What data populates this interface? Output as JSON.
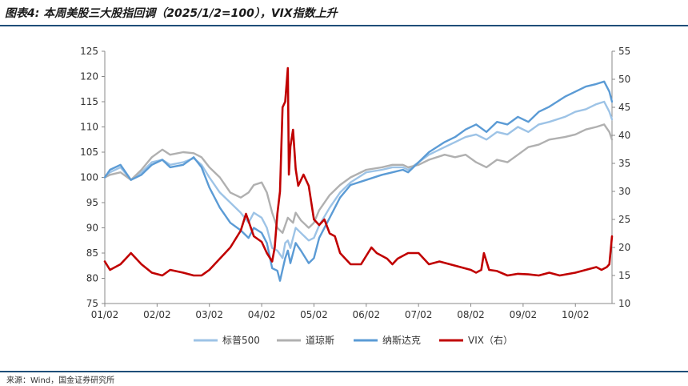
{
  "title": "图表4: 本周美股三大股指回调（2025/1/2=100），VIX指数上升",
  "source": "来源：Wind，国金证券研究所",
  "colors": {
    "spx": "#9dc3e6",
    "dji": "#b0b0b0",
    "ndx": "#5b9bd5",
    "vix": "#c00000",
    "rule": "#1f4e79"
  },
  "chart_data": {
    "type": "line",
    "x_ticks": [
      "01/02",
      "02/02",
      "03/02",
      "04/02",
      "05/02",
      "06/02",
      "07/02",
      "08/02",
      "09/02",
      "10/02"
    ],
    "left_axis": {
      "min": 75,
      "max": 125,
      "ticks": [
        125,
        120,
        115,
        110,
        105,
        100,
        95,
        90,
        85,
        80,
        75
      ]
    },
    "right_axis": {
      "min": 10,
      "max": 55,
      "ticks": [
        55,
        50,
        45,
        40,
        35,
        30,
        25,
        20,
        15,
        10
      ]
    },
    "x_domain": [
      0,
      9.7
    ],
    "legend_position": "bottom",
    "series": [
      {
        "name": "标普500",
        "key": "spx",
        "axis": "left",
        "points": [
          [
            0,
            100
          ],
          [
            0.1,
            101
          ],
          [
            0.3,
            102
          ],
          [
            0.5,
            99.5
          ],
          [
            0.7,
            101
          ],
          [
            0.9,
            103
          ],
          [
            1.1,
            103.5
          ],
          [
            1.25,
            102.5
          ],
          [
            1.5,
            103
          ],
          [
            1.7,
            103.8
          ],
          [
            1.85,
            102.5
          ],
          [
            2.0,
            100
          ],
          [
            2.2,
            97
          ],
          [
            2.4,
            95
          ],
          [
            2.6,
            93
          ],
          [
            2.75,
            91
          ],
          [
            2.85,
            93
          ],
          [
            3.0,
            92
          ],
          [
            3.1,
            90
          ],
          [
            3.2,
            86
          ],
          [
            3.3,
            85.5
          ],
          [
            3.4,
            84
          ],
          [
            3.45,
            87
          ],
          [
            3.5,
            87.5
          ],
          [
            3.55,
            86
          ],
          [
            3.65,
            90
          ],
          [
            3.75,
            89
          ],
          [
            3.9,
            87.5
          ],
          [
            4.0,
            88
          ],
          [
            4.1,
            90.5
          ],
          [
            4.3,
            94
          ],
          [
            4.5,
            97
          ],
          [
            4.7,
            99
          ],
          [
            5.0,
            101
          ],
          [
            5.3,
            101.5
          ],
          [
            5.5,
            102
          ],
          [
            5.7,
            102
          ],
          [
            5.8,
            101.5
          ],
          [
            6.0,
            103
          ],
          [
            6.2,
            104.5
          ],
          [
            6.5,
            106
          ],
          [
            6.7,
            107
          ],
          [
            6.9,
            108
          ],
          [
            7.1,
            108.5
          ],
          [
            7.3,
            107.5
          ],
          [
            7.5,
            109
          ],
          [
            7.7,
            108.5
          ],
          [
            7.9,
            110
          ],
          [
            8.1,
            109
          ],
          [
            8.3,
            110.5
          ],
          [
            8.5,
            111
          ],
          [
            8.8,
            112
          ],
          [
            9.0,
            113
          ],
          [
            9.2,
            113.5
          ],
          [
            9.4,
            114.5
          ],
          [
            9.55,
            115
          ],
          [
            9.65,
            113
          ],
          [
            9.7,
            111.5
          ]
        ]
      },
      {
        "name": "道琼斯",
        "key": "dji",
        "axis": "left",
        "points": [
          [
            0,
            100
          ],
          [
            0.1,
            100.5
          ],
          [
            0.3,
            101
          ],
          [
            0.5,
            99.5
          ],
          [
            0.7,
            101.5
          ],
          [
            0.9,
            104
          ],
          [
            1.1,
            105.5
          ],
          [
            1.25,
            104.5
          ],
          [
            1.5,
            105
          ],
          [
            1.7,
            104.8
          ],
          [
            1.85,
            104
          ],
          [
            2.0,
            102
          ],
          [
            2.2,
            100
          ],
          [
            2.4,
            97
          ],
          [
            2.6,
            96
          ],
          [
            2.75,
            97
          ],
          [
            2.85,
            98.5
          ],
          [
            3.0,
            99
          ],
          [
            3.1,
            97
          ],
          [
            3.2,
            93
          ],
          [
            3.3,
            90
          ],
          [
            3.4,
            89
          ],
          [
            3.5,
            92
          ],
          [
            3.6,
            91
          ],
          [
            3.65,
            93
          ],
          [
            3.75,
            91.5
          ],
          [
            3.9,
            90
          ],
          [
            4.0,
            91
          ],
          [
            4.1,
            93.5
          ],
          [
            4.3,
            96.5
          ],
          [
            4.5,
            98.5
          ],
          [
            4.7,
            100
          ],
          [
            5.0,
            101.5
          ],
          [
            5.3,
            102
          ],
          [
            5.5,
            102.5
          ],
          [
            5.7,
            102.5
          ],
          [
            5.8,
            102
          ],
          [
            6.0,
            102.5
          ],
          [
            6.2,
            103.5
          ],
          [
            6.5,
            104.5
          ],
          [
            6.7,
            104
          ],
          [
            6.9,
            104.5
          ],
          [
            7.1,
            103
          ],
          [
            7.3,
            102
          ],
          [
            7.5,
            103.5
          ],
          [
            7.7,
            103
          ],
          [
            7.9,
            104.5
          ],
          [
            8.1,
            106
          ],
          [
            8.3,
            106.5
          ],
          [
            8.5,
            107.5
          ],
          [
            8.8,
            108
          ],
          [
            9.0,
            108.5
          ],
          [
            9.2,
            109.5
          ],
          [
            9.4,
            110
          ],
          [
            9.55,
            110.5
          ],
          [
            9.65,
            109
          ],
          [
            9.7,
            107.5
          ]
        ]
      },
      {
        "name": "纳斯达克",
        "key": "ndx",
        "axis": "left",
        "points": [
          [
            0,
            100
          ],
          [
            0.1,
            101.5
          ],
          [
            0.3,
            102.5
          ],
          [
            0.5,
            99.5
          ],
          [
            0.7,
            100.5
          ],
          [
            0.9,
            102.5
          ],
          [
            1.1,
            103.5
          ],
          [
            1.25,
            102
          ],
          [
            1.5,
            102.5
          ],
          [
            1.7,
            104
          ],
          [
            1.85,
            102
          ],
          [
            2.0,
            98
          ],
          [
            2.2,
            94
          ],
          [
            2.4,
            91
          ],
          [
            2.6,
            89.5
          ],
          [
            2.75,
            88
          ],
          [
            2.85,
            90
          ],
          [
            3.0,
            89
          ],
          [
            3.1,
            87
          ],
          [
            3.2,
            82
          ],
          [
            3.3,
            81.5
          ],
          [
            3.35,
            79.5
          ],
          [
            3.45,
            84
          ],
          [
            3.5,
            85.5
          ],
          [
            3.55,
            83
          ],
          [
            3.65,
            87
          ],
          [
            3.75,
            85.5
          ],
          [
            3.9,
            83
          ],
          [
            4.0,
            84
          ],
          [
            4.1,
            88
          ],
          [
            4.3,
            92
          ],
          [
            4.5,
            96
          ],
          [
            4.7,
            98.5
          ],
          [
            5.0,
            99.5
          ],
          [
            5.3,
            100.5
          ],
          [
            5.5,
            101
          ],
          [
            5.7,
            101.5
          ],
          [
            5.8,
            101
          ],
          [
            6.0,
            103
          ],
          [
            6.2,
            105
          ],
          [
            6.5,
            107
          ],
          [
            6.7,
            108
          ],
          [
            6.9,
            109.5
          ],
          [
            7.1,
            110.5
          ],
          [
            7.3,
            109
          ],
          [
            7.5,
            111
          ],
          [
            7.7,
            110.5
          ],
          [
            7.9,
            112
          ],
          [
            8.1,
            111
          ],
          [
            8.3,
            113
          ],
          [
            8.5,
            114
          ],
          [
            8.8,
            116
          ],
          [
            9.0,
            117
          ],
          [
            9.2,
            118
          ],
          [
            9.4,
            118.5
          ],
          [
            9.55,
            119
          ],
          [
            9.65,
            117
          ],
          [
            9.7,
            115
          ]
        ]
      },
      {
        "name": "VIX（右）",
        "key": "vix",
        "axis": "right",
        "points": [
          [
            0,
            17.5
          ],
          [
            0.1,
            16
          ],
          [
            0.3,
            17
          ],
          [
            0.5,
            19
          ],
          [
            0.7,
            17
          ],
          [
            0.9,
            15.5
          ],
          [
            1.1,
            15
          ],
          [
            1.25,
            16
          ],
          [
            1.5,
            15.5
          ],
          [
            1.7,
            15
          ],
          [
            1.85,
            15
          ],
          [
            2.0,
            16
          ],
          [
            2.2,
            18
          ],
          [
            2.4,
            20
          ],
          [
            2.6,
            23
          ],
          [
            2.7,
            26
          ],
          [
            2.85,
            22
          ],
          [
            3.0,
            21
          ],
          [
            3.1,
            19
          ],
          [
            3.2,
            17.5
          ],
          [
            3.25,
            20
          ],
          [
            3.3,
            26
          ],
          [
            3.35,
            30
          ],
          [
            3.4,
            45
          ],
          [
            3.45,
            46
          ],
          [
            3.5,
            52
          ],
          [
            3.52,
            33
          ],
          [
            3.55,
            38
          ],
          [
            3.6,
            41
          ],
          [
            3.65,
            34
          ],
          [
            3.7,
            31
          ],
          [
            3.8,
            33
          ],
          [
            3.9,
            31
          ],
          [
            4.0,
            25
          ],
          [
            4.1,
            24
          ],
          [
            4.2,
            25
          ],
          [
            4.3,
            22.5
          ],
          [
            4.4,
            22
          ],
          [
            4.5,
            19
          ],
          [
            4.7,
            17
          ],
          [
            4.9,
            17
          ],
          [
            5.0,
            18.5
          ],
          [
            5.1,
            20
          ],
          [
            5.2,
            19
          ],
          [
            5.4,
            18
          ],
          [
            5.5,
            17
          ],
          [
            5.6,
            18
          ],
          [
            5.8,
            19
          ],
          [
            6.0,
            19
          ],
          [
            6.1,
            18
          ],
          [
            6.2,
            17
          ],
          [
            6.4,
            17.5
          ],
          [
            6.6,
            17
          ],
          [
            6.8,
            16.5
          ],
          [
            7.0,
            16
          ],
          [
            7.1,
            15.5
          ],
          [
            7.2,
            16
          ],
          [
            7.25,
            19
          ],
          [
            7.35,
            16
          ],
          [
            7.5,
            15.8
          ],
          [
            7.7,
            15
          ],
          [
            7.9,
            15.3
          ],
          [
            8.1,
            15.2
          ],
          [
            8.3,
            15
          ],
          [
            8.5,
            15.5
          ],
          [
            8.7,
            15
          ],
          [
            9.0,
            15.5
          ],
          [
            9.2,
            16
          ],
          [
            9.4,
            16.5
          ],
          [
            9.5,
            16
          ],
          [
            9.6,
            16.5
          ],
          [
            9.65,
            17
          ],
          [
            9.7,
            22
          ]
        ]
      }
    ]
  }
}
